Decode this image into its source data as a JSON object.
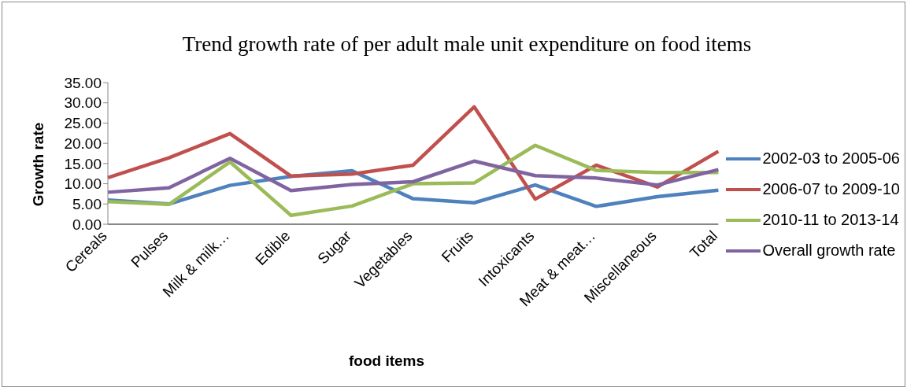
{
  "chart_data": {
    "type": "line",
    "title": "Trend growth rate of per adult male unit expenditure on food items",
    "xlabel": "food items",
    "ylabel": "Growth rate",
    "categories": [
      "Cereals",
      "Pulses",
      "Milk & milk…",
      "Edible",
      "Sugar",
      "Vegetables",
      "Fruits",
      "Intoxicants",
      "Meat & meat…",
      "Miscellaneous",
      "Total"
    ],
    "series": [
      {
        "name": "2002-03 to 2005-06",
        "color": "#4f81bd",
        "values": [
          6.0,
          5.0,
          9.6,
          11.8,
          13.2,
          6.3,
          5.3,
          9.7,
          4.4,
          6.8,
          8.4
        ]
      },
      {
        "name": "2006-07 to 2009-10",
        "color": "#c0504d",
        "values": [
          11.5,
          16.4,
          22.4,
          11.9,
          12.4,
          14.6,
          29.0,
          6.2,
          14.6,
          9.2,
          18.0
        ]
      },
      {
        "name": "2010-11 to 2013-14",
        "color": "#9bbb59",
        "values": [
          5.6,
          4.9,
          15.4,
          2.2,
          4.5,
          10.0,
          10.2,
          19.5,
          13.3,
          12.8,
          12.8
        ]
      },
      {
        "name": "Overall growth rate",
        "color": "#8064a2",
        "values": [
          7.9,
          9.0,
          16.3,
          8.3,
          9.8,
          10.5,
          15.6,
          12.0,
          11.4,
          9.7,
          13.5
        ]
      }
    ],
    "ylim": [
      0,
      35
    ],
    "yticks": [
      {
        "value": 0,
        "label": "0.00"
      },
      {
        "value": 5,
        "label": "5.00"
      },
      {
        "value": 10,
        "label": "10.00"
      },
      {
        "value": 15,
        "label": "15.00"
      },
      {
        "value": 20,
        "label": "20.00"
      },
      {
        "value": 25,
        "label": "25.00"
      },
      {
        "value": 30,
        "label": "30.00"
      },
      {
        "value": 35,
        "label": "35.00"
      }
    ],
    "grid": false,
    "legend": "right",
    "marker": "none",
    "line_style": "solid"
  }
}
